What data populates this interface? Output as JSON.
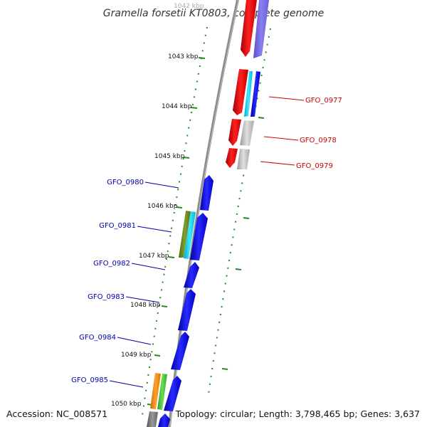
{
  "title": "Gramella forsetii KT0803, complete genome",
  "accession": "Accession: NC_008571",
  "topology": "Topology: circular; Length: 3,798,465 bp; Genes: 3,637",
  "colors": {
    "backbone": "#8c8c8c",
    "scale": "#228b22",
    "forward_gene": "#ff0000",
    "reverse_gene": "#0000ff",
    "right_label": "#cc0000",
    "left_label": "#0000aa"
  },
  "ticks": [
    "1042 kbp",
    "1043 kbp",
    "1044 kbp",
    "1045 kbp",
    "1046 kbp",
    "1047 kbp",
    "1048 kbp",
    "1049 kbp",
    "1050 kbp"
  ],
  "right_labels": [
    "GFO_0977",
    "GFO_0978",
    "GFO_0979"
  ],
  "left_labels": [
    "GFO_0980",
    "GFO_0981",
    "GFO_0982",
    "GFO_0983",
    "GFO_0984",
    "GFO_0985"
  ]
}
